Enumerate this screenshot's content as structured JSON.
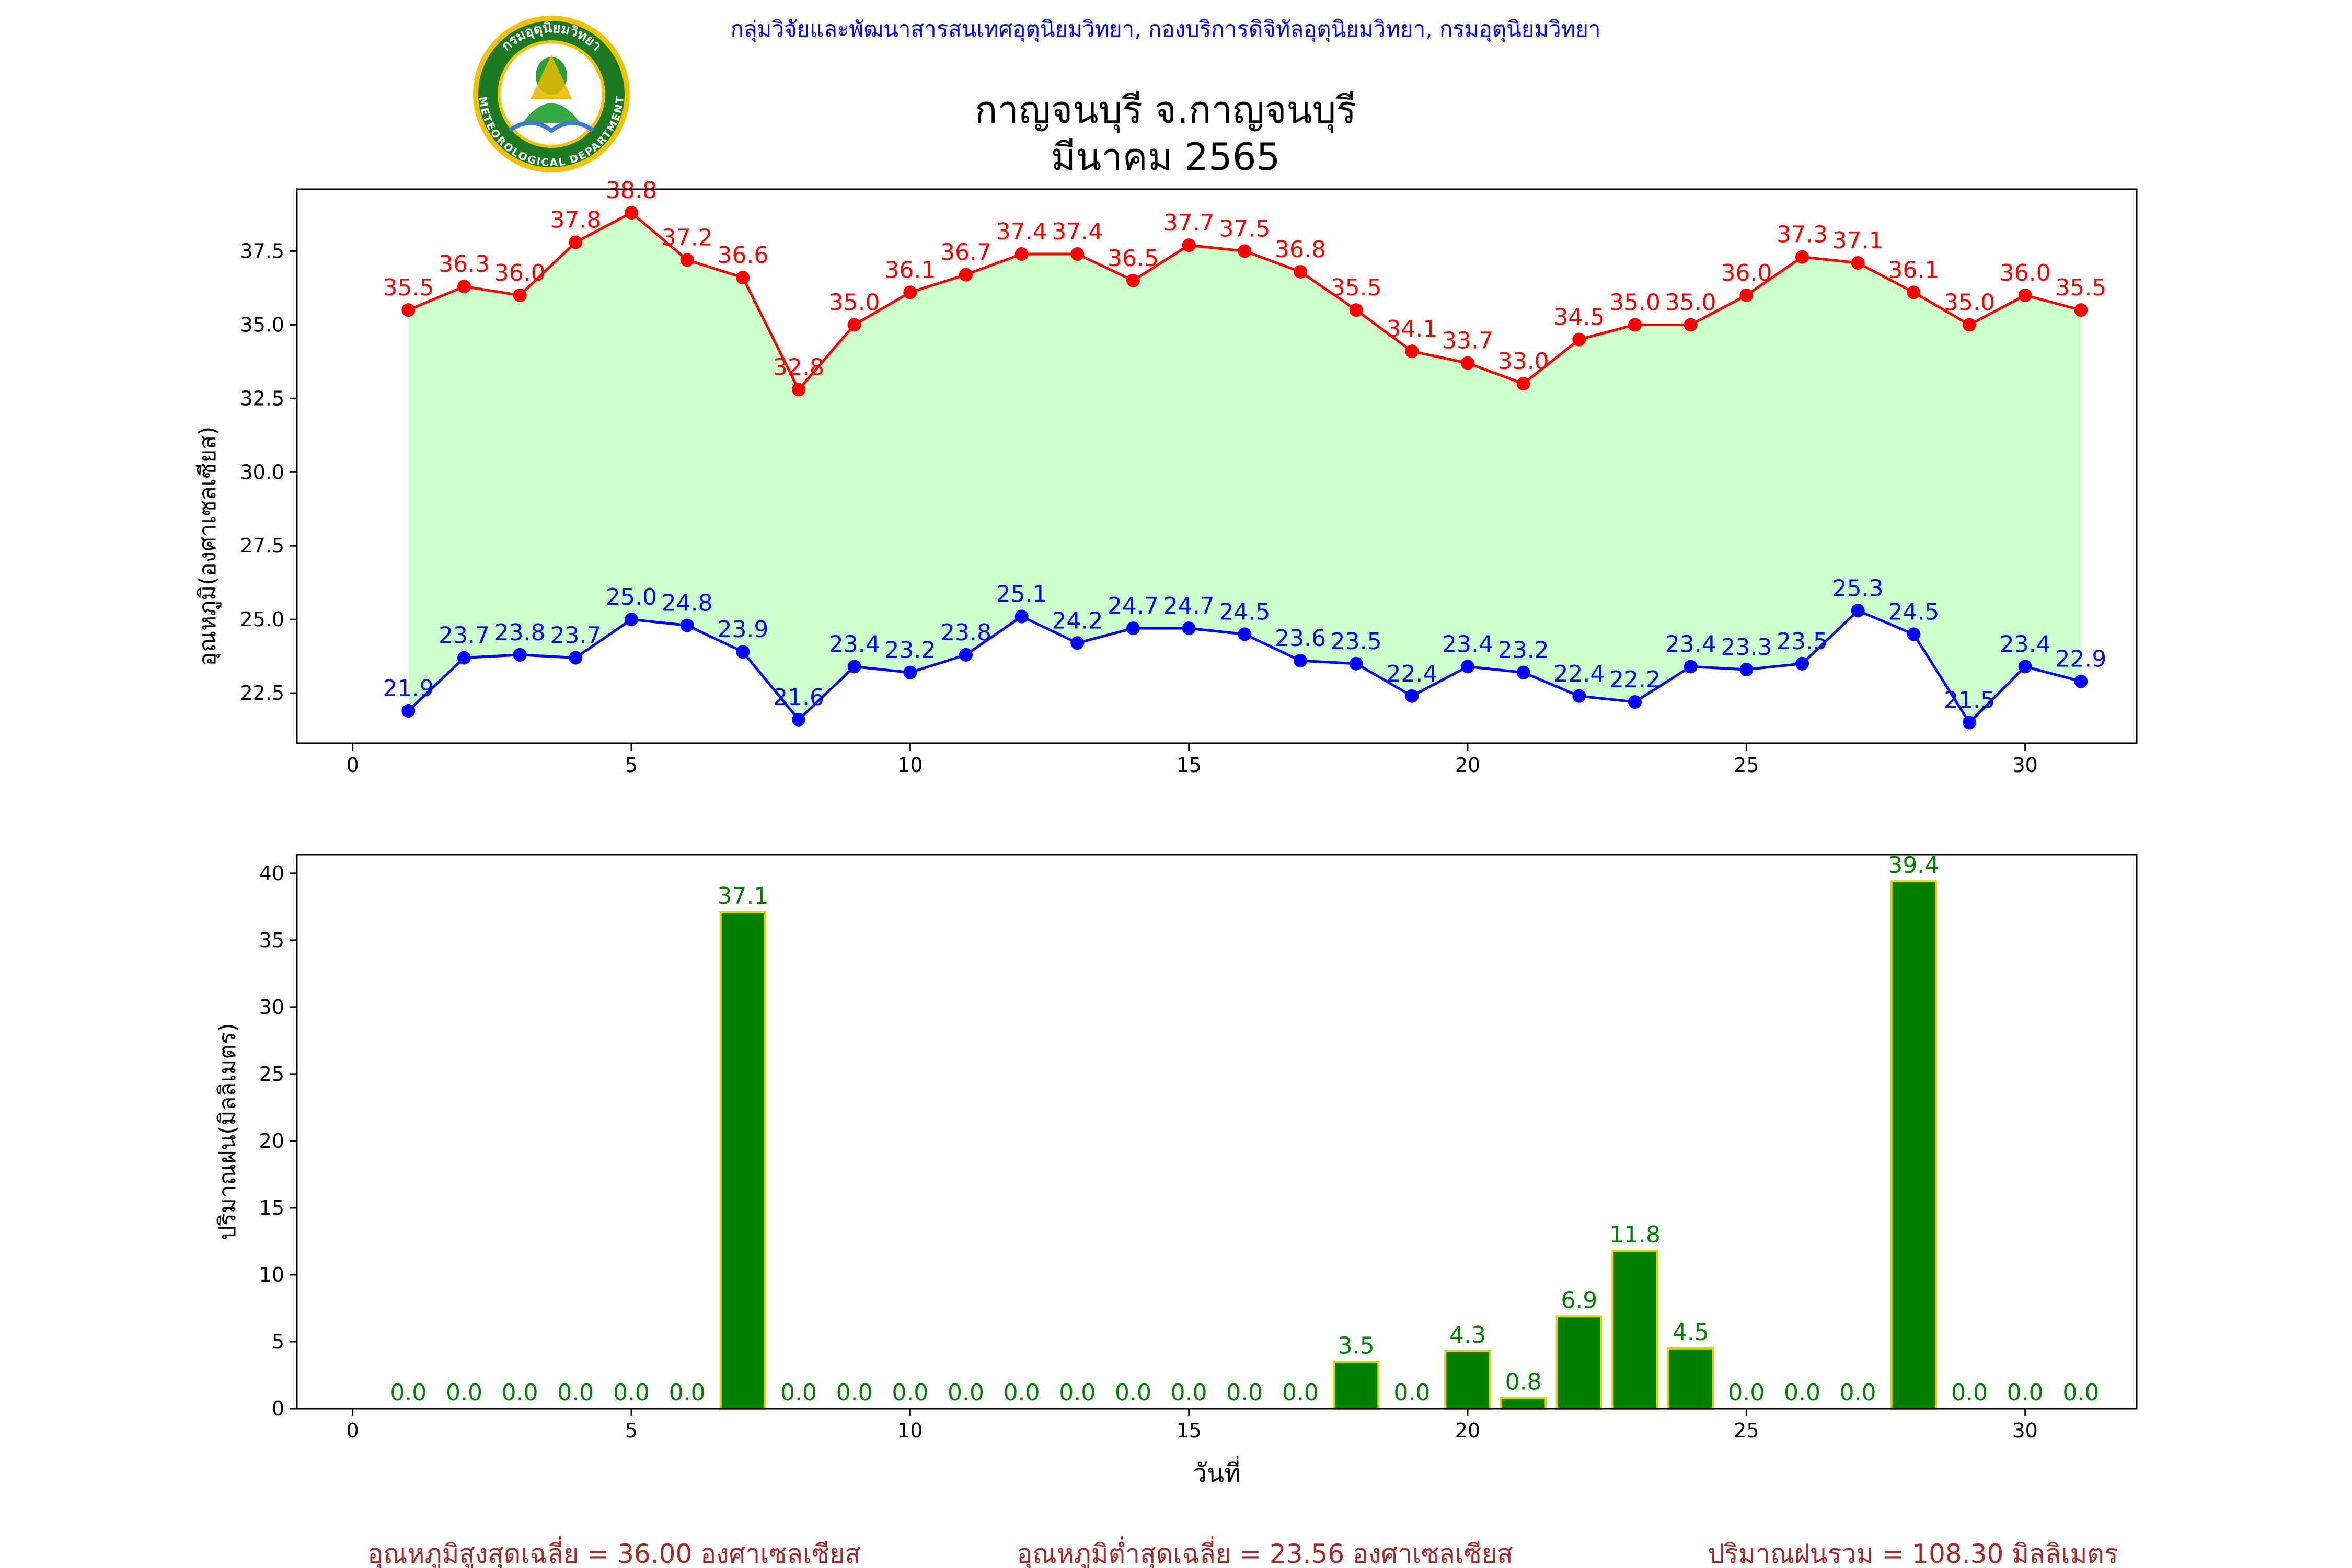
{
  "header": {
    "agency": "กลุ่มวิจัยและพัฒนาสารสนเทศอุตุนิยมวิทยา, กองบริการดิจิทัลอุตุนิยมวิทยา, กรมอุตุนิยมวิทยา",
    "title_line1": "กาญจนบุรี จ.กาญจนบุรี",
    "title_line2": "มีนาคม 2565",
    "logo_text_top": "กรมอุตุนิยมวิทยา",
    "logo_text_bottom": "METEOROLOGICAL DEPARTMENT"
  },
  "footer": {
    "avg_max": "อุณหภูมิสูงสุดเฉลี่ย = 36.00 องศาเซลเซียส",
    "avg_min": "อุณหภูมิต่ำสุดเฉลี่ย = 23.56 องศาเซลเซียส",
    "rain_total": "ปริมาณฝนรวม = 108.30 มิลลิเมตร"
  },
  "colors": {
    "max_line": "#ff0000",
    "min_line": "#0000ff",
    "fill": "#ccffcc",
    "bar": "#008000",
    "bar_edge": "#e6d200",
    "bar_label": "#008000",
    "header_text": "#0000ff",
    "footer_text": "#a52a2a"
  },
  "chart_data": [
    {
      "type": "line",
      "ylabel": "อุณหภูมิ(องศาเซลเซียส)",
      "xlim": [
        -1,
        32
      ],
      "ylim": [
        20.8,
        39.6
      ],
      "xticks": [
        0,
        5,
        10,
        15,
        20,
        25,
        30
      ],
      "yticks": [
        22.5,
        25.0,
        27.5,
        30.0,
        32.5,
        35.0,
        37.5
      ],
      "x": [
        1,
        2,
        3,
        4,
        5,
        6,
        7,
        8,
        9,
        10,
        11,
        12,
        13,
        14,
        15,
        16,
        17,
        18,
        19,
        20,
        21,
        22,
        23,
        24,
        25,
        26,
        27,
        28,
        29,
        30,
        31
      ],
      "series": [
        {
          "values": [
            35.5,
            36.3,
            36.0,
            37.8,
            38.8,
            37.2,
            36.6,
            32.8,
            35.0,
            36.1,
            36.7,
            37.4,
            37.4,
            36.5,
            37.7,
            37.5,
            36.8,
            35.5,
            34.1,
            33.7,
            33.0,
            34.5,
            35.0,
            35.0,
            36.0,
            37.3,
            37.1,
            36.1,
            35.0,
            36.0,
            35.5
          ]
        },
        {
          "values": [
            21.9,
            23.7,
            23.8,
            23.7,
            25.0,
            24.8,
            23.9,
            21.6,
            23.4,
            23.2,
            23.8,
            25.1,
            24.2,
            24.7,
            24.7,
            24.5,
            23.6,
            23.5,
            22.4,
            23.4,
            23.2,
            22.4,
            22.2,
            23.4,
            23.3,
            23.5,
            25.3,
            24.5,
            21.5,
            23.4,
            22.9
          ]
        }
      ],
      "fill_between": true,
      "grid": false
    },
    {
      "type": "bar",
      "xlabel": "วันที่",
      "ylabel": "ปริมาณฝน(มิลลิเมตร)",
      "xlim": [
        -1,
        32
      ],
      "ylim": [
        0,
        41.4
      ],
      "xticks": [
        0,
        5,
        10,
        15,
        20,
        25,
        30
      ],
      "yticks": [
        0,
        5,
        10,
        15,
        20,
        25,
        30,
        35,
        40
      ],
      "x": [
        1,
        2,
        3,
        4,
        5,
        6,
        7,
        8,
        9,
        10,
        11,
        12,
        13,
        14,
        15,
        16,
        17,
        18,
        19,
        20,
        21,
        22,
        23,
        24,
        25,
        26,
        27,
        28,
        29,
        30,
        31
      ],
      "values": [
        0.0,
        0.0,
        0.0,
        0.0,
        0.0,
        0.0,
        37.1,
        0.0,
        0.0,
        0.0,
        0.0,
        0.0,
        0.0,
        0.0,
        0.0,
        0.0,
        0.0,
        3.5,
        0.0,
        4.3,
        0.8,
        6.9,
        11.8,
        4.5,
        0.0,
        0.0,
        0.0,
        39.4,
        0.0,
        0.0,
        0.0
      ],
      "grid": false
    }
  ]
}
